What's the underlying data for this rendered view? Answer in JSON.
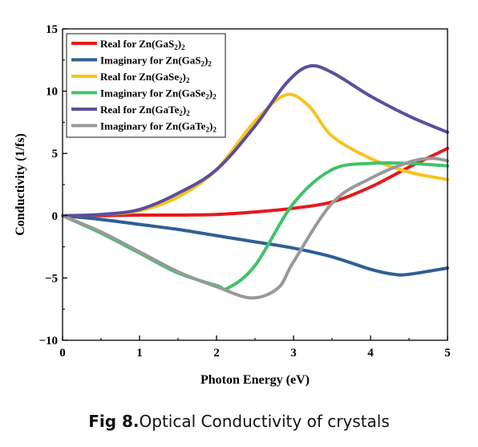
{
  "chart_data": {
    "type": "line",
    "xlabel": "Photon Energy (eV)",
    "ylabel": "Conductivity (1/fs)",
    "xlim": [
      0,
      5
    ],
    "ylim": [
      -10,
      15
    ],
    "x_ticks": [
      0,
      1,
      2,
      3,
      4,
      5
    ],
    "y_ticks": [
      -10,
      -5,
      0,
      5,
      10,
      15
    ],
    "legend_position": "top-left",
    "grid": false,
    "series": [
      {
        "name": "Real for Zn(GaS2)2",
        "label_main": "Real for Zn(GaS",
        "label_sub": "2",
        "label_end": ")",
        "label_sub2": "2",
        "color": "#e41a1c",
        "x": [
          0,
          0.5,
          1.0,
          1.5,
          2.0,
          2.5,
          3.0,
          3.5,
          4.0,
          4.5,
          5.0
        ],
        "y": [
          0,
          0.0,
          0.05,
          0.05,
          0.1,
          0.3,
          0.6,
          1.1,
          2.3,
          3.9,
          5.4
        ]
      },
      {
        "name": "Imaginary for Zn(GaS2)2",
        "label_main": "Imaginary for Zn(GaS",
        "label_sub": "2",
        "label_end": ")",
        "label_sub2": "2",
        "color": "#2e5f95",
        "x": [
          0,
          0.5,
          1.0,
          1.5,
          2.0,
          2.5,
          3.0,
          3.5,
          4.0,
          4.3,
          4.5,
          5.0
        ],
        "y": [
          0,
          -0.3,
          -0.7,
          -1.1,
          -1.6,
          -2.1,
          -2.6,
          -3.3,
          -4.3,
          -4.7,
          -4.7,
          -4.2
        ]
      },
      {
        "name": "Real for Zn(GaSe2)2",
        "label_main": "Real for Zn(GaSe",
        "label_sub": "2",
        "label_end": ")",
        "label_sub2": "2",
        "color": "#f9c31f",
        "x": [
          0,
          0.5,
          1.0,
          1.5,
          2.0,
          2.5,
          2.9,
          3.2,
          3.5,
          4.0,
          4.5,
          5.0
        ],
        "y": [
          0,
          0.1,
          0.4,
          1.5,
          3.7,
          7.6,
          9.7,
          8.8,
          6.4,
          4.6,
          3.5,
          2.9
        ]
      },
      {
        "name": "Imaginary for Zn(GaSe2)2",
        "label_main": "Imaginary for Zn(GaSe",
        "label_sub": "2",
        "label_end": ")",
        "label_sub2": "2",
        "color": "#3ec36a",
        "x": [
          0,
          0.5,
          1.0,
          1.5,
          2.0,
          2.15,
          2.5,
          3.0,
          3.5,
          4.0,
          4.5,
          5.0
        ],
        "y": [
          0,
          -1.4,
          -3.0,
          -4.6,
          -5.6,
          -5.8,
          -4.0,
          1.0,
          3.7,
          4.2,
          4.2,
          4.0
        ]
      },
      {
        "name": "Real for Zn(GaTe2)2",
        "label_main": "Real for Zn(GaTe",
        "label_sub": "2",
        "label_end": ")",
        "label_sub2": "2",
        "color": "#5b4e9c",
        "x": [
          0,
          0.5,
          1.0,
          1.5,
          2.0,
          2.5,
          2.9,
          3.2,
          3.5,
          4.0,
          4.5,
          5.0
        ],
        "y": [
          0,
          0.1,
          0.5,
          1.8,
          3.7,
          7.2,
          10.6,
          12.0,
          11.5,
          9.6,
          8.0,
          6.7
        ]
      },
      {
        "name": "Imaginary for Zn(GaTe2)2",
        "label_main": "Imaginary for Zn(GaTe",
        "label_sub": "2",
        "label_end": ")",
        "label_sub2": "2",
        "color": "#999999",
        "x": [
          0,
          0.5,
          1.0,
          1.5,
          2.0,
          2.45,
          2.8,
          3.0,
          3.5,
          4.0,
          4.5,
          4.8,
          5.0
        ],
        "y": [
          0,
          -1.3,
          -2.9,
          -4.5,
          -5.7,
          -6.6,
          -5.8,
          -3.7,
          1.0,
          3.0,
          4.3,
          4.6,
          4.4
        ]
      }
    ]
  },
  "caption": {
    "fig_num": "Fig 8.",
    "text": "Optical Conductivity of crystals"
  }
}
